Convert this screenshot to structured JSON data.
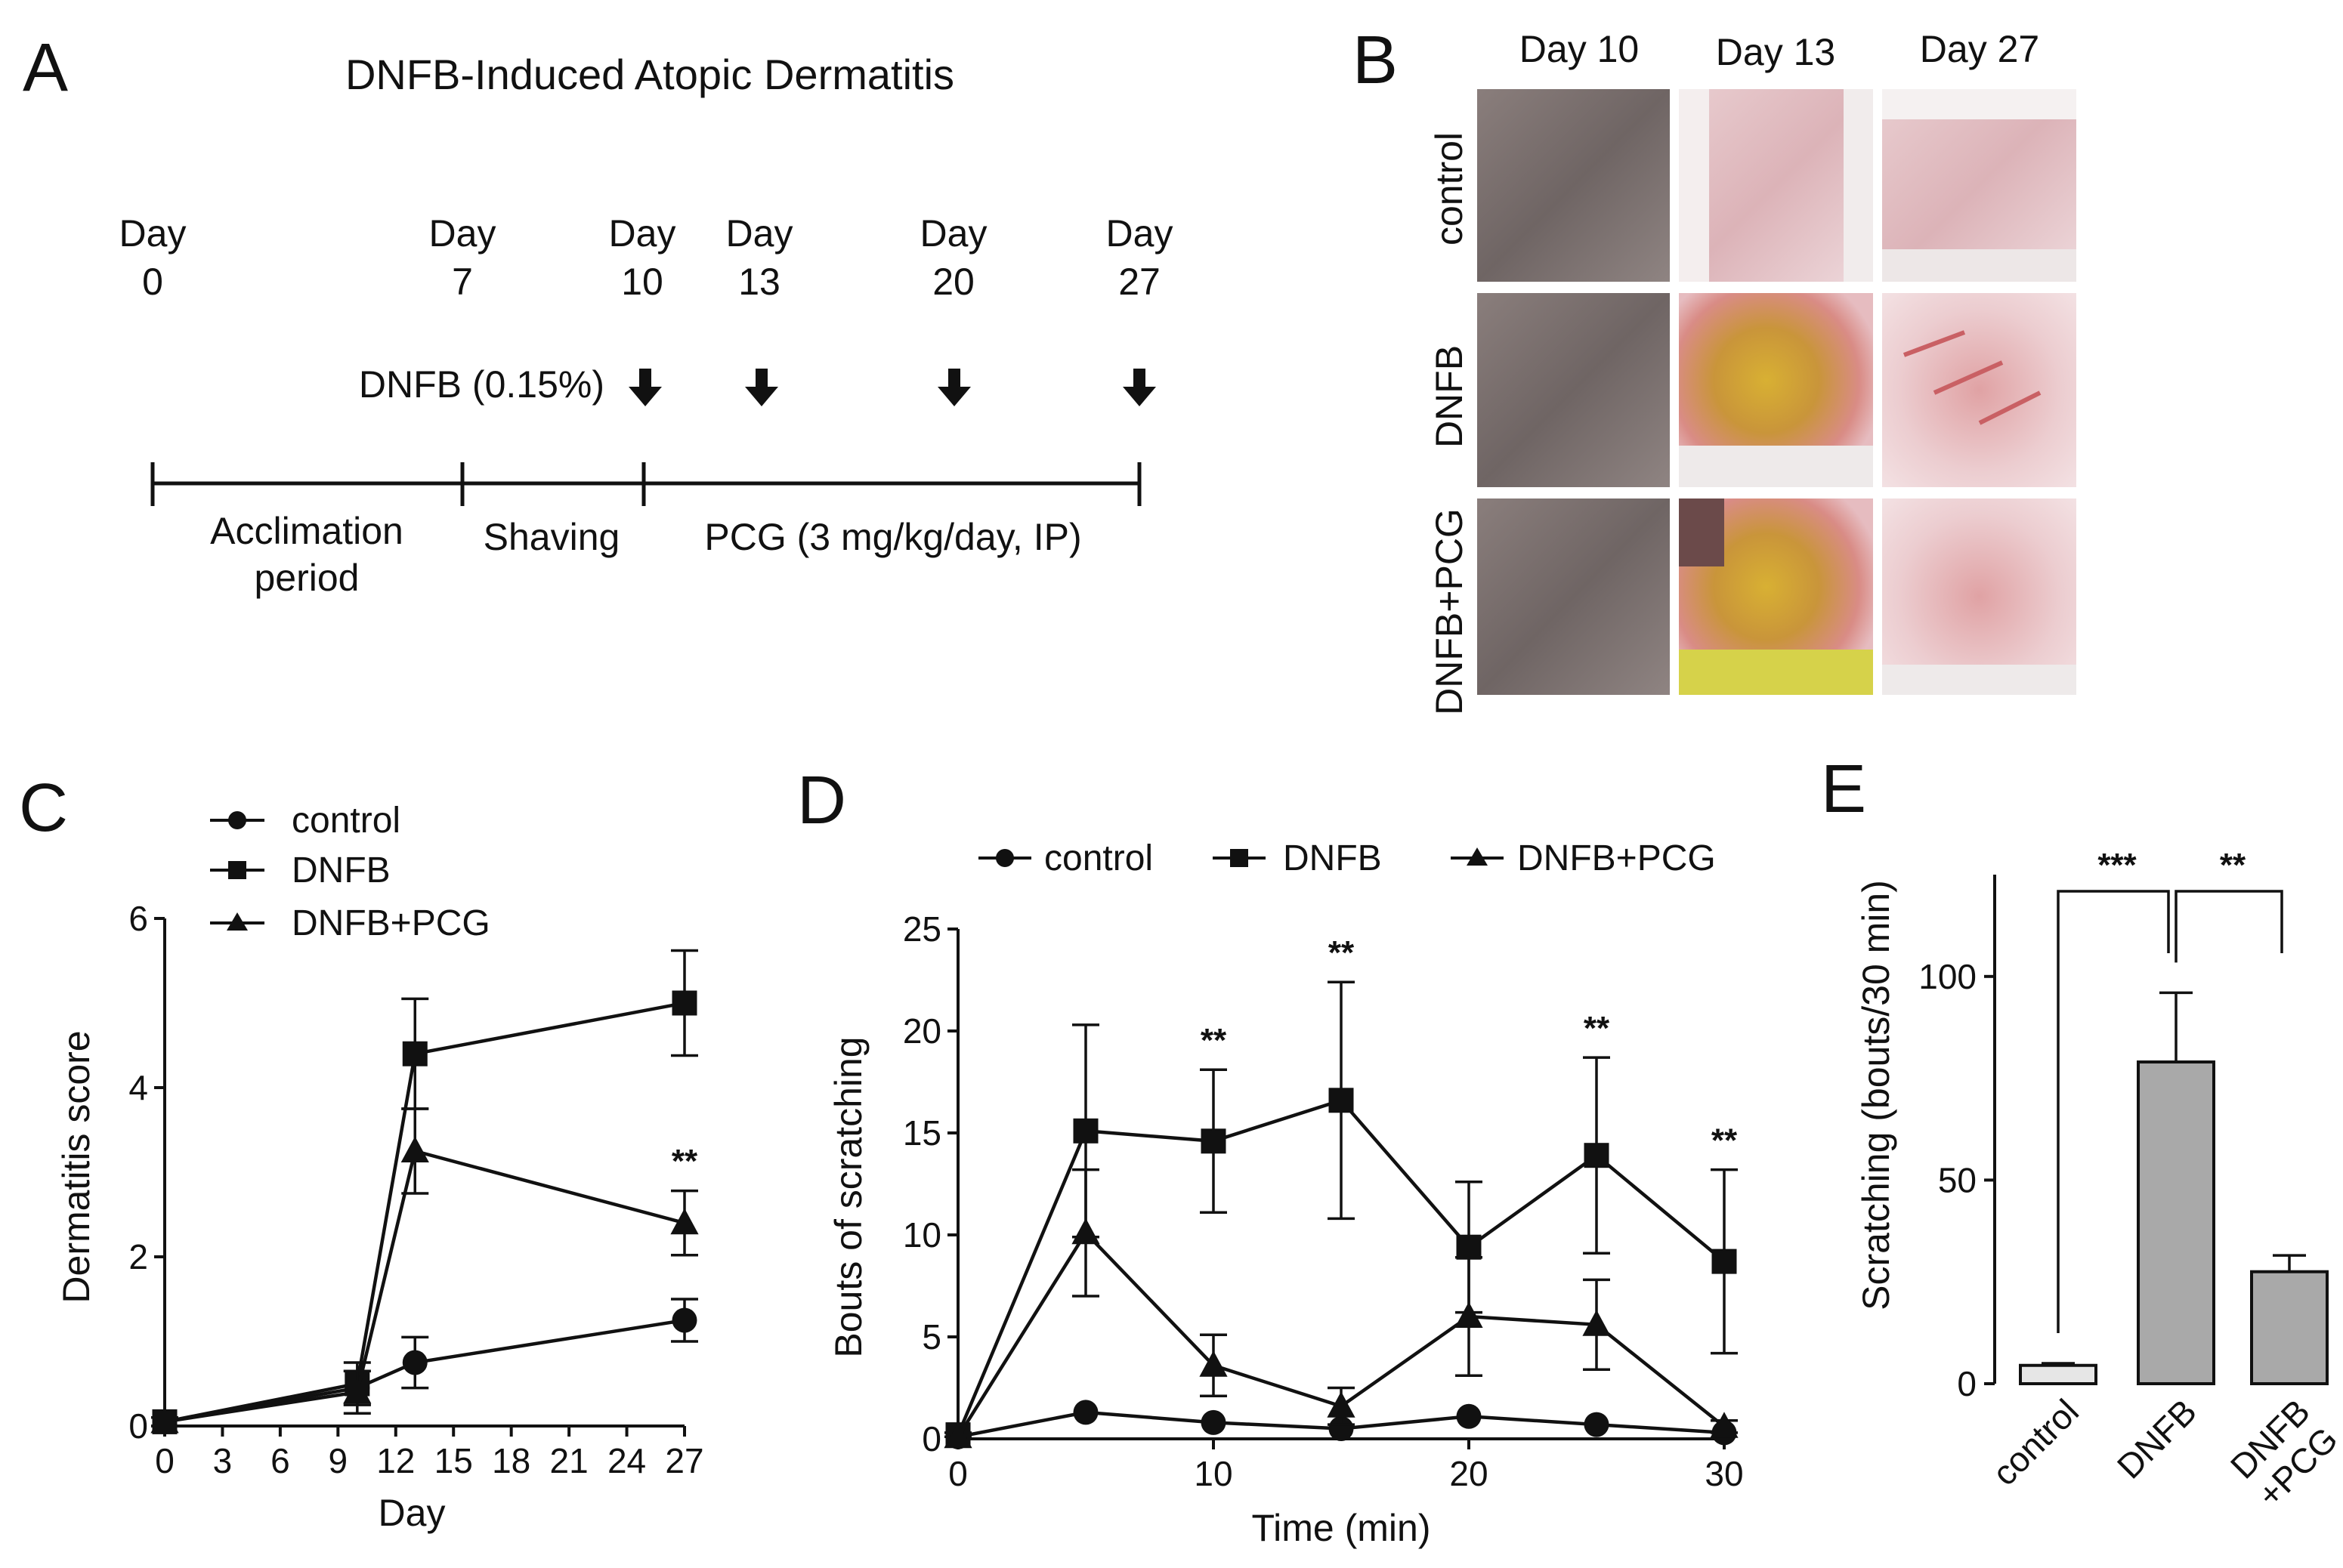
{
  "panel_letters": {
    "a": "A",
    "b": "B",
    "c": "C",
    "d": "D",
    "e": "E"
  },
  "timeline": {
    "title": "DNFB-Induced Atopic Dermatitis",
    "days": [
      {
        "word": "Day",
        "num": "0"
      },
      {
        "word": "Day",
        "num": "7"
      },
      {
        "word": "Day",
        "num": "10"
      },
      {
        "word": "Day",
        "num": "13"
      },
      {
        "word": "Day",
        "num": "20"
      },
      {
        "word": "Day",
        "num": "27"
      }
    ],
    "dnfb_label": "DNFB (0.15%)",
    "periods": {
      "acclimation_line1": "Acclimation",
      "acclimation_line2": "period",
      "shaving": "Shaving",
      "pcg": "PCG (3 mg/kg/day, IP)"
    }
  },
  "photos": {
    "col_headers": [
      "Day 10",
      "Day 13",
      "Day 27"
    ],
    "row_labels": [
      "control",
      "DNFB",
      "DNFB+PCG"
    ]
  },
  "colors": {
    "bar_control": "#e6e6e6",
    "bar_treated": "#a9a9a9",
    "ink": "#111111"
  },
  "chart_data": [
    {
      "id": "C",
      "type": "line",
      "title": "",
      "xlabel": "Day",
      "ylabel": "Dermatitis score",
      "xlim": [
        0,
        27
      ],
      "ylim": [
        0,
        6
      ],
      "xticks": [
        0,
        3,
        6,
        9,
        12,
        15,
        18,
        21,
        24,
        27
      ],
      "xtick_labels": [
        "0",
        "3",
        "6",
        "9",
        "12",
        "15",
        "18",
        "21",
        "24",
        "27"
      ],
      "yticks": [
        0,
        2,
        4,
        6
      ],
      "ytick_labels": [
        "0",
        "2",
        "4",
        "6"
      ],
      "legend": [
        "control",
        "DNFB",
        "DNFB+PCG"
      ],
      "series": [
        {
          "name": "control",
          "marker": "circle",
          "x": [
            0,
            10,
            13,
            27
          ],
          "y": [
            0.05,
            0.45,
            0.75,
            1.25
          ],
          "err": [
            0.05,
            0.2,
            0.3,
            0.25
          ]
        },
        {
          "name": "DNFB",
          "marker": "square",
          "x": [
            0,
            10,
            13,
            27
          ],
          "y": [
            0.05,
            0.5,
            4.4,
            5.0
          ],
          "err": [
            0.05,
            0.25,
            0.65,
            0.62
          ]
        },
        {
          "name": "DNFB+PCG",
          "marker": "triangle",
          "x": [
            0,
            10,
            13,
            27
          ],
          "y": [
            0.05,
            0.4,
            3.25,
            2.4
          ],
          "err": [
            0.05,
            0.25,
            0.5,
            0.38
          ]
        }
      ],
      "annotations": [
        {
          "x": 27,
          "y": 3.0,
          "text": "**"
        }
      ]
    },
    {
      "id": "D",
      "type": "line",
      "title": "",
      "xlabel": "Time (min)",
      "ylabel": "Bouts of scratching",
      "xlim": [
        0,
        30
      ],
      "ylim": [
        0,
        25
      ],
      "xticks": [
        0,
        10,
        20,
        30
      ],
      "xtick_labels": [
        "0",
        "10",
        "20",
        "30"
      ],
      "yticks": [
        0,
        5,
        10,
        15,
        20,
        25
      ],
      "ytick_labels": [
        "0",
        "5",
        "10",
        "15",
        "20",
        "25"
      ],
      "legend": [
        "control",
        "DNFB",
        "DNFB+PCG"
      ],
      "series": [
        {
          "name": "control",
          "marker": "circle",
          "x": [
            0,
            5,
            10,
            15,
            20,
            25,
            30
          ],
          "y": [
            0.1,
            1.3,
            0.8,
            0.5,
            1.1,
            0.7,
            0.3
          ],
          "err": [
            0,
            0,
            0,
            0,
            0,
            0,
            0
          ]
        },
        {
          "name": "DNFB",
          "marker": "square",
          "x": [
            0,
            5,
            10,
            15,
            20,
            25,
            30
          ],
          "y": [
            0.2,
            15.1,
            14.6,
            16.6,
            9.4,
            13.9,
            8.7
          ],
          "err": [
            0.1,
            5.2,
            3.5,
            5.8,
            3.2,
            4.8,
            4.5
          ]
        },
        {
          "name": "DNFB+PCG",
          "marker": "triangle",
          "x": [
            0,
            5,
            10,
            15,
            20,
            25,
            30
          ],
          "y": [
            0.1,
            10.1,
            3.6,
            1.6,
            6.0,
            5.6,
            0.6
          ],
          "err": [
            0,
            3.1,
            1.5,
            0.9,
            2.9,
            2.2,
            0.3
          ]
        }
      ],
      "annotations": [
        {
          "x": 10,
          "y": 19.0,
          "text": "**"
        },
        {
          "x": 15,
          "y": 23.3,
          "text": "**"
        },
        {
          "x": 25,
          "y": 19.6,
          "text": "**"
        },
        {
          "x": 30,
          "y": 14.1,
          "text": "**"
        }
      ]
    },
    {
      "id": "E",
      "type": "bar",
      "title": "",
      "xlabel": "",
      "ylabel": "Scratching (bouts/30 min)",
      "ylim": [
        0,
        125
      ],
      "yticks": [
        0,
        50,
        100
      ],
      "ytick_labels": [
        "0",
        "50",
        "100"
      ],
      "categories": [
        "control",
        "DNFB",
        "DNFB\n+PCG"
      ],
      "values": [
        4.5,
        79,
        27.5
      ],
      "errors": [
        0.5,
        17,
        4
      ],
      "significance": [
        {
          "from": 0,
          "to": 1,
          "text": "***"
        },
        {
          "from": 1,
          "to": 2,
          "text": "**"
        }
      ]
    }
  ]
}
